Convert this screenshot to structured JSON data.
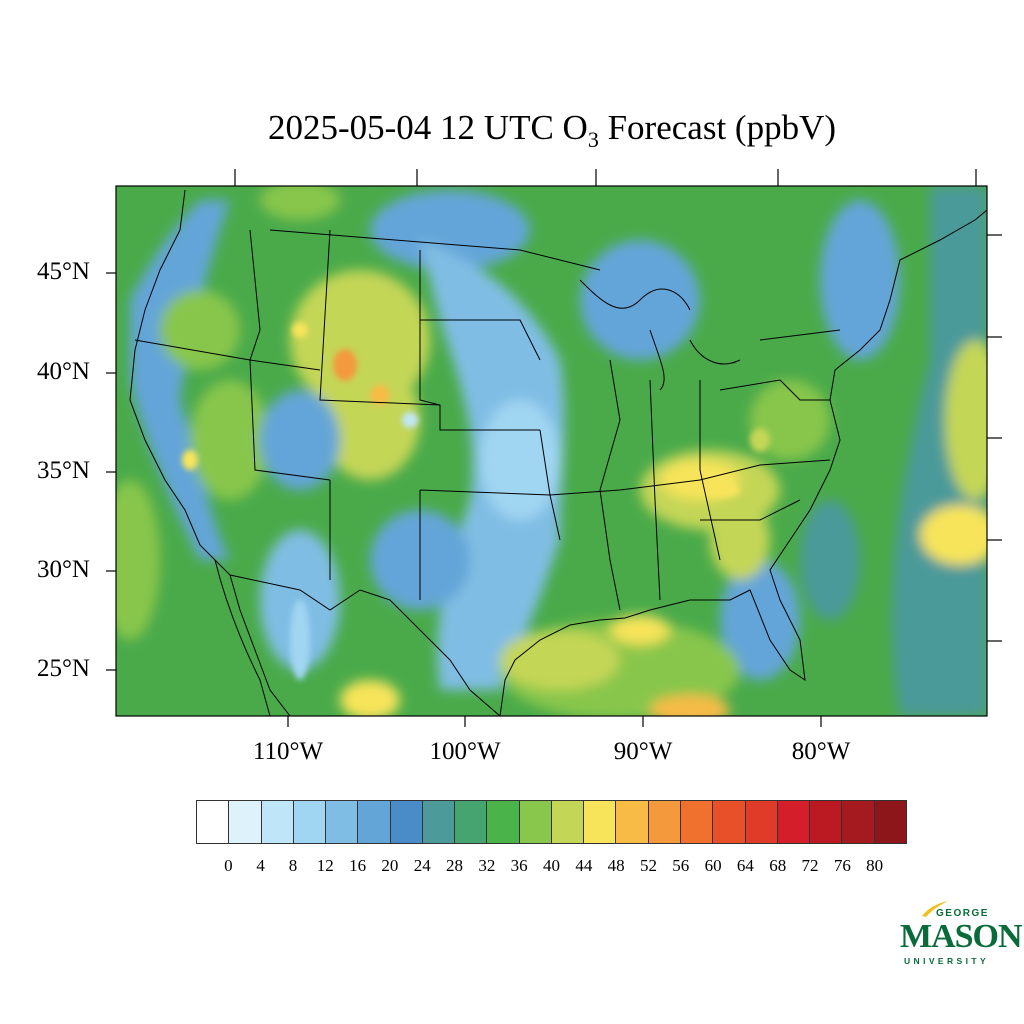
{
  "title": {
    "prefix": "2025-05-04 12 UTC O",
    "subscript": "3",
    "suffix": " Forecast (ppbV)"
  },
  "map": {
    "lat_labels": [
      "45°N",
      "40°N",
      "35°N",
      "30°N",
      "25°N"
    ],
    "lon_labels": [
      "110°W",
      "100°W",
      "90°W",
      "80°W"
    ],
    "background_color": "#4aaa4a"
  },
  "colorbar": {
    "ticks": [
      "0",
      "4",
      "8",
      "12",
      "16",
      "20",
      "24",
      "28",
      "32",
      "36",
      "40",
      "44",
      "48",
      "52",
      "56",
      "60",
      "64",
      "68",
      "72",
      "76",
      "80"
    ],
    "colors": [
      "#ffffff",
      "#def2fb",
      "#bfe6f8",
      "#a0d6f2",
      "#80bde4",
      "#64a5d8",
      "#4a8cc8",
      "#4c9a9a",
      "#46a470",
      "#4ab44a",
      "#88c64c",
      "#c4d656",
      "#f7e45a",
      "#f7bb46",
      "#f49a3c",
      "#f0702e",
      "#e8502a",
      "#e03a28",
      "#d41e2a",
      "#bc1a22",
      "#a41a1e",
      "#8c161a"
    ]
  },
  "logo": {
    "line1": "GEORGE",
    "line2": "MASON",
    "line3": "UNIVERSITY",
    "color": "#0a6b3a",
    "accent": "#f0c020"
  }
}
